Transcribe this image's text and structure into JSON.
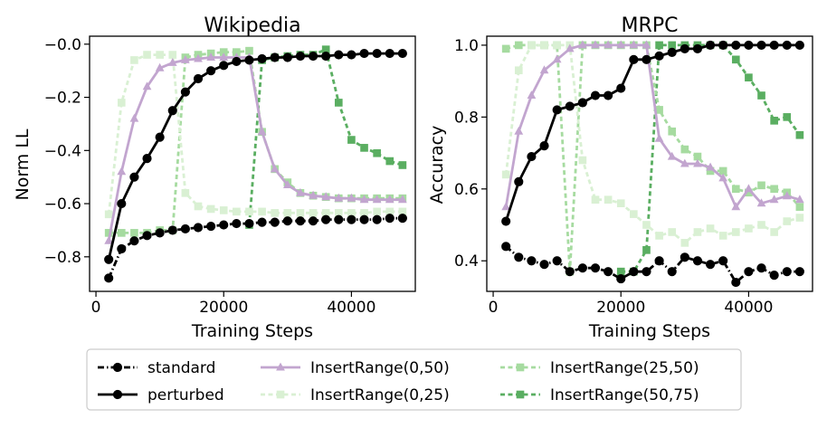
{
  "figure": {
    "legend": {
      "location": "bottom-center",
      "entries": [
        {
          "key": "standard",
          "label": "standard"
        },
        {
          "key": "perturbed",
          "label": "perturbed"
        },
        {
          "key": "ir050",
          "label": "InsertRange(0,50)"
        },
        {
          "key": "ir025",
          "label": "InsertRange(0,25)"
        },
        {
          "key": "ir2550",
          "label": "InsertRange(25,50)"
        },
        {
          "key": "ir5075",
          "label": "InsertRange(50,75)"
        }
      ]
    }
  },
  "series_styles": {
    "standard": {
      "color": "#000000",
      "dash": "dashdot",
      "marker": "circle",
      "label": "standard"
    },
    "perturbed": {
      "color": "#000000",
      "dash": "solid",
      "marker": "circle",
      "label": "perturbed"
    },
    "ir050": {
      "color": "#c2a5cf",
      "dash": "solid",
      "marker": "triangle",
      "label": "InsertRange(0,50)"
    },
    "ir025": {
      "color": "#d9f0d3",
      "dash": "dashed",
      "marker": "square",
      "label": "InsertRange(0,25)"
    },
    "ir2550": {
      "color": "#a6dba0",
      "dash": "dashed",
      "marker": "square",
      "label": "InsertRange(25,50)"
    },
    "ir5075": {
      "color": "#5aae61",
      "dash": "dashed",
      "marker": "square",
      "label": "InsertRange(50,75)"
    }
  },
  "chart_data": [
    {
      "type": "line",
      "title": "Wikipedia",
      "xlabel": "Training Steps",
      "ylabel": "Norm LL",
      "xlim": [
        -1000,
        50000
      ],
      "ylim": [
        -0.93,
        0.03
      ],
      "xticks": [
        0,
        20000,
        40000
      ],
      "xtick_labels": [
        "0",
        "20000",
        "40000"
      ],
      "yticks": [
        0.0,
        -0.2,
        -0.4,
        -0.6,
        -0.8
      ],
      "ytick_labels": [
        "−0.0",
        "−0.2",
        "−0.4",
        "−0.6",
        "−0.8"
      ],
      "x": [
        2000,
        4000,
        6000,
        8000,
        10000,
        12000,
        14000,
        16000,
        18000,
        20000,
        22000,
        24000,
        26000,
        28000,
        30000,
        32000,
        34000,
        36000,
        38000,
        40000,
        42000,
        44000,
        46000,
        48000
      ],
      "series": [
        {
          "key": "standard",
          "values": [
            -0.88,
            -0.77,
            -0.74,
            -0.72,
            -0.71,
            -0.7,
            -0.695,
            -0.69,
            -0.685,
            -0.68,
            -0.675,
            -0.675,
            -0.67,
            -0.67,
            -0.665,
            -0.665,
            -0.665,
            -0.66,
            -0.66,
            -0.66,
            -0.66,
            -0.66,
            -0.655,
            -0.655
          ]
        },
        {
          "key": "perturbed",
          "values": [
            -0.81,
            -0.6,
            -0.5,
            -0.43,
            -0.35,
            -0.25,
            -0.18,
            -0.13,
            -0.1,
            -0.08,
            -0.065,
            -0.06,
            -0.055,
            -0.05,
            -0.05,
            -0.045,
            -0.045,
            -0.045,
            -0.04,
            -0.04,
            -0.035,
            -0.035,
            -0.035,
            -0.035
          ]
        },
        {
          "key": "ir050",
          "values": [
            -0.74,
            -0.48,
            -0.28,
            -0.16,
            -0.09,
            -0.07,
            -0.06,
            -0.055,
            -0.05,
            -0.05,
            -0.05,
            -0.05,
            -0.33,
            -0.47,
            -0.53,
            -0.56,
            -0.57,
            -0.575,
            -0.58,
            -0.58,
            -0.585,
            -0.585,
            -0.585,
            -0.585
          ]
        },
        {
          "key": "ir025",
          "values": [
            -0.64,
            -0.22,
            -0.06,
            -0.04,
            -0.04,
            -0.04,
            -0.56,
            -0.61,
            -0.62,
            -0.625,
            -0.63,
            -0.63,
            -0.63,
            -0.635,
            -0.635,
            -0.635,
            -0.635,
            -0.635,
            -0.635,
            -0.635,
            -0.635,
            -0.63,
            -0.63,
            -0.63
          ]
        },
        {
          "key": "ir2550",
          "values": [
            -0.71,
            -0.71,
            -0.71,
            -0.71,
            -0.7,
            -0.7,
            -0.05,
            -0.04,
            -0.035,
            -0.03,
            -0.03,
            -0.025,
            -0.33,
            -0.47,
            -0.52,
            -0.56,
            -0.57,
            -0.575,
            -0.58,
            -0.58,
            -0.58,
            -0.58,
            -0.58,
            -0.58
          ]
        },
        {
          "key": "ir5075",
          "x": [
            24000,
            26000,
            28000,
            30000,
            32000,
            34000,
            36000,
            38000,
            40000,
            42000,
            44000,
            46000,
            48000
          ],
          "values": [
            -0.68,
            -0.06,
            -0.05,
            -0.045,
            -0.04,
            -0.04,
            -0.02,
            -0.22,
            -0.36,
            -0.39,
            -0.41,
            -0.44,
            -0.455
          ]
        }
      ]
    },
    {
      "type": "line",
      "title": "MRPC",
      "xlabel": "Training Steps",
      "ylabel": "Accuracy",
      "xlim": [
        -1000,
        50000
      ],
      "ylim": [
        0.315,
        1.025
      ],
      "xticks": [
        0,
        20000,
        40000
      ],
      "xtick_labels": [
        "0",
        "20000",
        "40000"
      ],
      "yticks": [
        0.4,
        0.6,
        0.8,
        1.0
      ],
      "ytick_labels": [
        "0.4",
        "0.6",
        "0.8",
        "1.0"
      ],
      "x": [
        2000,
        4000,
        6000,
        8000,
        10000,
        12000,
        14000,
        16000,
        18000,
        20000,
        22000,
        24000,
        26000,
        28000,
        30000,
        32000,
        34000,
        36000,
        38000,
        40000,
        42000,
        44000,
        46000,
        48000
      ],
      "series": [
        {
          "key": "standard",
          "values": [
            0.44,
            0.41,
            0.4,
            0.39,
            0.4,
            0.37,
            0.38,
            0.38,
            0.37,
            0.35,
            0.37,
            0.37,
            0.4,
            0.37,
            0.41,
            0.4,
            0.39,
            0.4,
            0.34,
            0.37,
            0.38,
            0.36,
            0.37,
            0.37
          ]
        },
        {
          "key": "perturbed",
          "values": [
            0.51,
            0.62,
            0.69,
            0.72,
            0.82,
            0.83,
            0.84,
            0.86,
            0.86,
            0.88,
            0.96,
            0.96,
            0.97,
            0.98,
            0.99,
            0.99,
            1.0,
            1.0,
            1.0,
            1.0,
            1.0,
            1.0,
            1.0,
            1.0
          ]
        },
        {
          "key": "ir050",
          "values": [
            0.55,
            0.76,
            0.86,
            0.93,
            0.96,
            0.99,
            1.0,
            1.0,
            1.0,
            1.0,
            1.0,
            1.0,
            0.74,
            0.69,
            0.67,
            0.67,
            0.66,
            0.63,
            0.55,
            0.6,
            0.56,
            0.57,
            0.58,
            0.57
          ]
        },
        {
          "key": "ir025",
          "values": [
            0.64,
            0.93,
            1.0,
            1.0,
            1.0,
            1.0,
            0.68,
            0.57,
            0.57,
            0.56,
            0.53,
            0.5,
            0.47,
            0.48,
            0.45,
            0.48,
            0.49,
            0.47,
            0.48,
            0.49,
            0.5,
            0.48,
            0.51,
            0.52
          ]
        },
        {
          "key": "ir2550",
          "values": [
            0.99,
            1.0,
            1.0,
            1.0,
            1.0,
            0.37,
            1.0,
            1.0,
            1.0,
            1.0,
            1.0,
            1.0,
            0.82,
            0.76,
            0.71,
            0.69,
            0.65,
            0.65,
            0.6,
            0.59,
            0.61,
            0.6,
            0.59,
            0.55
          ]
        },
        {
          "key": "ir5075",
          "x": [
            20000,
            22000,
            24000,
            26000,
            28000,
            30000,
            32000,
            34000,
            36000,
            38000,
            40000,
            42000,
            44000,
            46000,
            48000
          ],
          "values": [
            0.37,
            0.37,
            0.43,
            1.0,
            1.0,
            1.0,
            1.0,
            1.0,
            1.0,
            0.96,
            0.91,
            0.86,
            0.79,
            0.8,
            0.75
          ]
        }
      ]
    }
  ]
}
